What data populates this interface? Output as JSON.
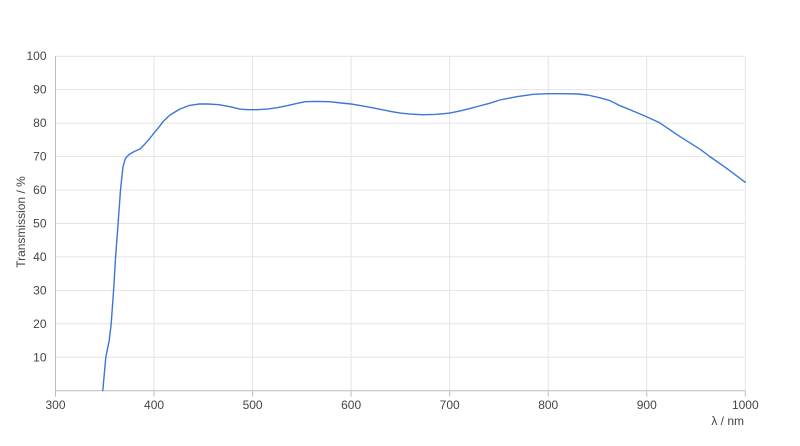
{
  "page": {
    "background": "#ffffff"
  },
  "chart_data": {
    "type": "line",
    "title": "",
    "xlabel": "λ / nm",
    "ylabel": "Transmission / %",
    "xlim": [
      300,
      1000
    ],
    "ylim": [
      0,
      100
    ],
    "x_ticks": [
      300,
      400,
      500,
      600,
      700,
      800,
      900,
      1000
    ],
    "y_ticks": [
      10,
      20,
      30,
      40,
      50,
      60,
      70,
      80,
      90,
      100
    ],
    "grid": true,
    "legend": false,
    "colors": {
      "line": "#3b76d9",
      "grid": "#e4e4e4",
      "axis": "#bdbdbd",
      "tick_label": "#454545"
    },
    "series": [
      {
        "name": "transmission",
        "color": "#3b76d9",
        "points": [
          [
            348,
            0
          ],
          [
            351,
            10
          ],
          [
            354.5,
            15
          ],
          [
            356.5,
            20
          ],
          [
            359,
            30
          ],
          [
            361,
            40
          ],
          [
            363.5,
            50
          ],
          [
            366,
            60
          ],
          [
            368.5,
            67
          ],
          [
            371,
            69.5
          ],
          [
            375,
            70.7
          ],
          [
            380,
            71.5
          ],
          [
            386,
            72.3
          ],
          [
            390,
            73.5
          ],
          [
            395,
            75.2
          ],
          [
            400,
            77
          ],
          [
            405,
            78.8
          ],
          [
            409,
            80.4
          ],
          [
            416,
            82.4
          ],
          [
            426,
            84.2
          ],
          [
            436,
            85.3
          ],
          [
            446,
            85.7
          ],
          [
            455,
            85.7
          ],
          [
            466,
            85.5
          ],
          [
            477,
            84.9
          ],
          [
            487,
            84.2
          ],
          [
            495,
            84
          ],
          [
            505,
            84
          ],
          [
            515,
            84.2
          ],
          [
            525,
            84.6
          ],
          [
            535,
            85.2
          ],
          [
            545,
            85.9
          ],
          [
            553,
            86.4
          ],
          [
            565,
            86.5
          ],
          [
            578,
            86.4
          ],
          [
            590,
            86
          ],
          [
            600,
            85.7
          ],
          [
            610,
            85.2
          ],
          [
            620,
            84.7
          ],
          [
            630,
            84.1
          ],
          [
            640,
            83.5
          ],
          [
            650,
            83
          ],
          [
            660,
            82.7
          ],
          [
            672,
            82.5
          ],
          [
            685,
            82.6
          ],
          [
            694,
            82.8
          ],
          [
            700,
            83
          ],
          [
            710,
            83.6
          ],
          [
            720,
            84.3
          ],
          [
            730,
            85.1
          ],
          [
            740,
            85.9
          ],
          [
            751,
            86.9
          ],
          [
            768,
            87.9
          ],
          [
            785,
            88.6
          ],
          [
            800,
            88.8
          ],
          [
            815,
            88.8
          ],
          [
            830,
            88.7
          ],
          [
            840,
            88.4
          ],
          [
            852,
            87.6
          ],
          [
            862,
            86.8
          ],
          [
            873,
            85.2
          ],
          [
            887,
            83.5
          ],
          [
            899,
            82
          ],
          [
            913,
            80.1
          ],
          [
            934,
            75.9
          ],
          [
            954,
            72.2
          ],
          [
            964,
            70
          ],
          [
            981,
            66.5
          ],
          [
            1000,
            62.3
          ]
        ]
      }
    ]
  }
}
